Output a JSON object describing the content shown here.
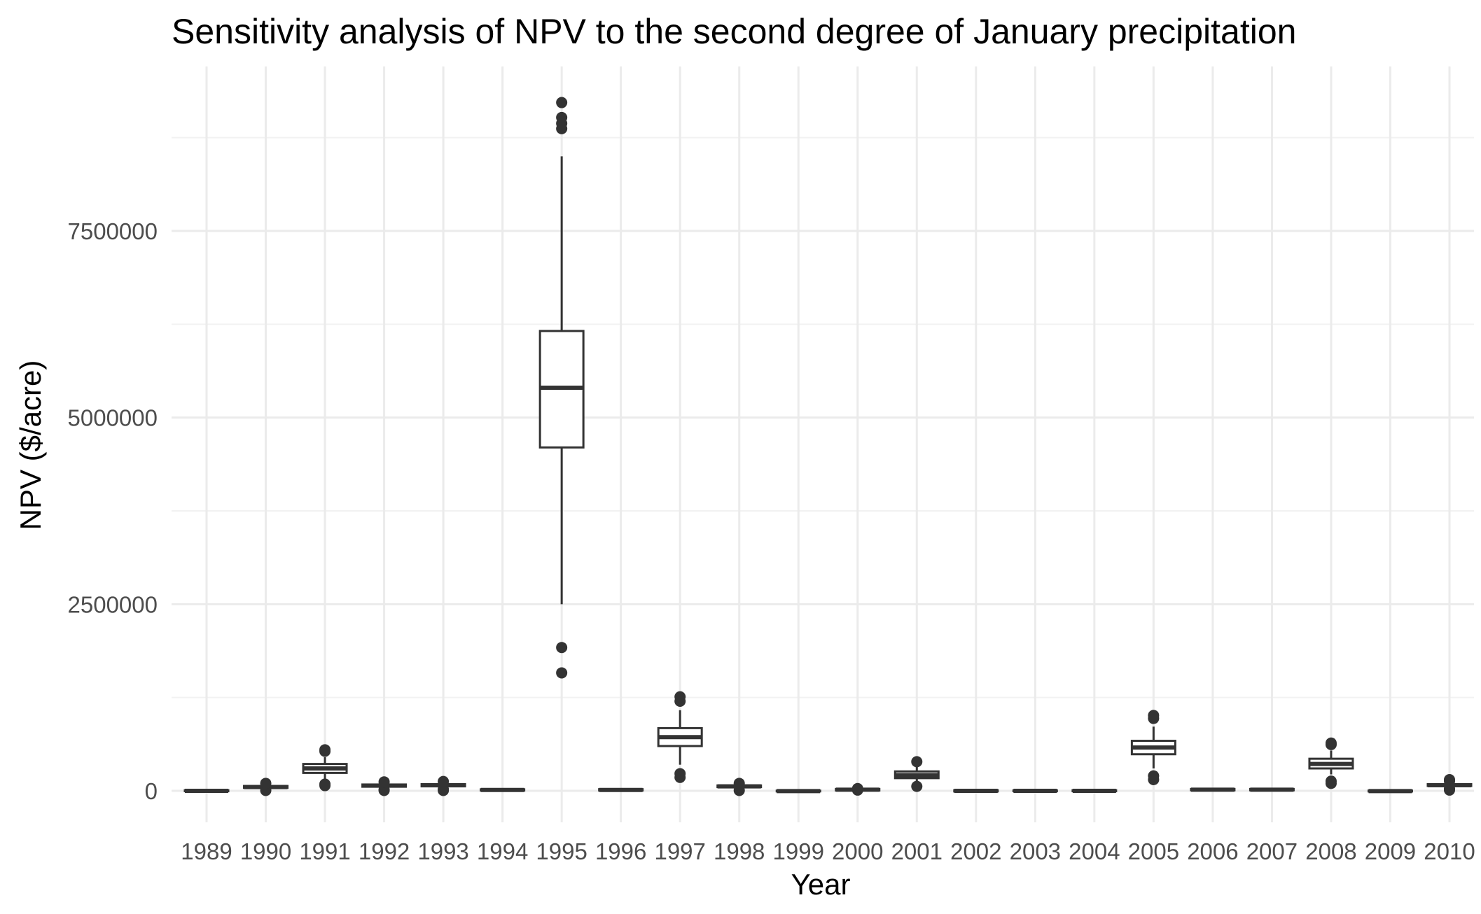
{
  "chart_data": {
    "type": "box",
    "title": "Sensitivity analysis of NPV to the second degree of January precipitation",
    "xlabel": "Year",
    "ylabel": "NPV ($/acre)",
    "ylim": [
      -300000,
      9400000
    ],
    "yticks": [
      0,
      2500000,
      5000000,
      7500000
    ],
    "ytick_labels": [
      "0",
      "2500000",
      "5000000",
      "7500000"
    ],
    "grid": true,
    "categories": [
      "1989",
      "1990",
      "1991",
      "1992",
      "1993",
      "1994",
      "1995",
      "1996",
      "1997",
      "1998",
      "1999",
      "2000",
      "2001",
      "2002",
      "2003",
      "2004",
      "2005",
      "2006",
      "2007",
      "2008",
      "2009",
      "2010"
    ],
    "boxes": [
      {
        "year": "1989",
        "whisker_low": -10000,
        "q1": -5000,
        "median": 0,
        "q3": 8000,
        "whisker_high": 15000,
        "outliers": []
      },
      {
        "year": "1990",
        "whisker_low": 20000,
        "q1": 40000,
        "median": 50000,
        "q3": 65000,
        "whisker_high": 80000,
        "outliers": [
          5000,
          100000
        ]
      },
      {
        "year": "1991",
        "whisker_low": 150000,
        "q1": 240000,
        "median": 300000,
        "q3": 360000,
        "whisker_high": 450000,
        "outliers": [
          70000,
          90000,
          530000,
          550000
        ]
      },
      {
        "year": "1992",
        "whisker_low": 30000,
        "q1": 55000,
        "median": 70000,
        "q3": 85000,
        "whisker_high": 100000,
        "outliers": [
          5000,
          15000,
          120000
        ]
      },
      {
        "year": "1993",
        "whisker_low": 35000,
        "q1": 60000,
        "median": 75000,
        "q3": 90000,
        "whisker_high": 105000,
        "outliers": [
          5000,
          20000,
          125000
        ]
      },
      {
        "year": "1994",
        "whisker_low": -5000,
        "q1": 5000,
        "median": 12000,
        "q3": 20000,
        "whisker_high": 30000,
        "outliers": []
      },
      {
        "year": "1995",
        "whisker_low": 2500000,
        "q1": 4600000,
        "median": 5400000,
        "q3": 6160000,
        "whisker_high": 8500000,
        "outliers": [
          1580000,
          1920000,
          8870000,
          8940000,
          9020000,
          9220000
        ]
      },
      {
        "year": "1996",
        "whisker_low": -5000,
        "q1": 5000,
        "median": 12000,
        "q3": 22000,
        "whisker_high": 30000,
        "outliers": []
      },
      {
        "year": "1997",
        "whisker_low": 350000,
        "q1": 600000,
        "median": 720000,
        "q3": 840000,
        "whisker_high": 1080000,
        "outliers": [
          180000,
          230000,
          1200000,
          1260000
        ]
      },
      {
        "year": "1998",
        "whisker_low": 30000,
        "q1": 50000,
        "median": 60000,
        "q3": 72000,
        "whisker_high": 85000,
        "outliers": [
          5000,
          100000
        ]
      },
      {
        "year": "1999",
        "whisker_low": -10000,
        "q1": -6000,
        "median": -3000,
        "q3": 2000,
        "whisker_high": 5000,
        "outliers": []
      },
      {
        "year": "2000",
        "whisker_low": -5000,
        "q1": 5000,
        "median": 15000,
        "q3": 25000,
        "whisker_high": 35000,
        "outliers": [
          10000,
          30000
        ]
      },
      {
        "year": "2001",
        "whisker_low": 120000,
        "q1": 170000,
        "median": 210000,
        "q3": 260000,
        "whisker_high": 320000,
        "outliers": [
          60000,
          390000
        ]
      },
      {
        "year": "2002",
        "whisker_low": -15000,
        "q1": -8000,
        "median": 0,
        "q3": 8000,
        "whisker_high": 15000,
        "outliers": []
      },
      {
        "year": "2003",
        "whisker_low": -10000,
        "q1": -5000,
        "median": 0,
        "q3": 5000,
        "whisker_high": 10000,
        "outliers": []
      },
      {
        "year": "2004",
        "whisker_low": -10000,
        "q1": -5000,
        "median": 0,
        "q3": 8000,
        "whisker_high": 15000,
        "outliers": []
      },
      {
        "year": "2005",
        "whisker_low": 300000,
        "q1": 490000,
        "median": 580000,
        "q3": 670000,
        "whisker_high": 860000,
        "outliers": [
          150000,
          200000,
          970000,
          1010000
        ]
      },
      {
        "year": "2006",
        "whisker_low": -5000,
        "q1": 8000,
        "median": 15000,
        "q3": 25000,
        "whisker_high": 35000,
        "outliers": []
      },
      {
        "year": "2007",
        "whisker_low": -5000,
        "q1": 8000,
        "median": 15000,
        "q3": 25000,
        "whisker_high": 35000,
        "outliers": []
      },
      {
        "year": "2008",
        "whisker_low": 220000,
        "q1": 300000,
        "median": 360000,
        "q3": 430000,
        "whisker_high": 540000,
        "outliers": [
          100000,
          130000,
          620000,
          640000
        ]
      },
      {
        "year": "2009",
        "whisker_low": -15000,
        "q1": -8000,
        "median": -3000,
        "q3": 3000,
        "whisker_high": 10000,
        "outliers": []
      },
      {
        "year": "2010",
        "whisker_low": 45000,
        "q1": 65000,
        "median": 75000,
        "q3": 90000,
        "whisker_high": 110000,
        "outliers": [
          10000,
          30000,
          130000,
          150000
        ]
      }
    ]
  }
}
